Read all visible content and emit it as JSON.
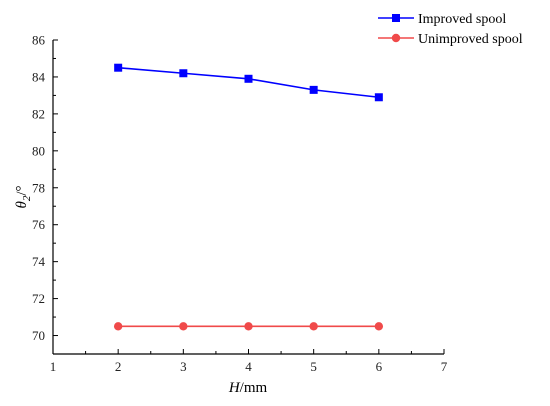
{
  "chart_data": {
    "type": "line",
    "x": [
      2,
      3,
      4,
      5,
      6
    ],
    "series": [
      {
        "name": "Improved spool",
        "values": [
          84.5,
          84.2,
          83.9,
          83.3,
          82.9
        ],
        "color": "#0000ff",
        "marker": "square"
      },
      {
        "name": "Unimproved spool",
        "values": [
          70.5,
          70.5,
          70.5,
          70.5,
          70.5
        ],
        "color": "#f04a4a",
        "marker": "circle"
      }
    ],
    "xlim": [
      1,
      7
    ],
    "ylim": [
      69,
      86
    ],
    "xticks": [
      "1",
      "2",
      "3",
      "4",
      "5",
      "6",
      "7"
    ],
    "yticks": [
      "70",
      "72",
      "74",
      "76",
      "78",
      "80",
      "82",
      "84",
      "86"
    ],
    "xlabel": {
      "italic": "H",
      "unit": "/mm"
    },
    "ylabel": {
      "italic": "θ",
      "subscript": "2",
      "unit": "/°"
    },
    "title": "",
    "grid": false,
    "legend_position": "top-right",
    "axis_color": "#000000"
  }
}
